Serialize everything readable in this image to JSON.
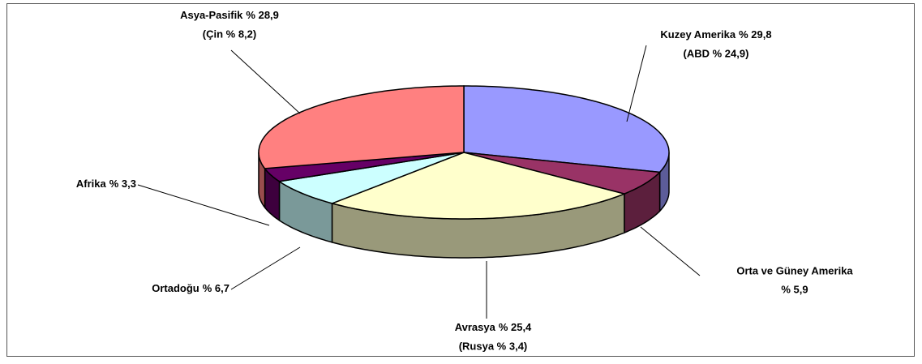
{
  "chart_data": {
    "type": "pie3d",
    "categories": [
      "Kuzey Amerika",
      "Orta ve Güney Amerika",
      "Avrasya",
      "Ortadoğu",
      "Afrika",
      "Asya-Pasifik"
    ],
    "values": [
      29.8,
      5.9,
      25.4,
      6.7,
      3.3,
      28.9
    ],
    "value_labels": [
      "% 29,8",
      "% 5,9",
      "% 25,4",
      "% 6,7",
      "% 3,3",
      "% 28,9"
    ],
    "annotations": [
      "(ABD % 24,9)",
      null,
      "(Rusya % 3,4)",
      null,
      null,
      "(Çin % 8,2)"
    ],
    "colors": [
      "#9999ff",
      "#993366",
      "#ffffcc",
      "#ccffff",
      "#660066",
      "#ff8080"
    ]
  }
}
